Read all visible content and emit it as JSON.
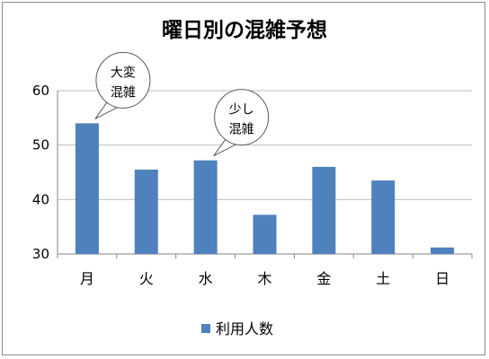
{
  "chart_data": {
    "type": "bar",
    "title": "曜日別の混雑予想",
    "categories": [
      "月",
      "火",
      "水",
      "木",
      "金",
      "土",
      "日"
    ],
    "series": [
      {
        "name": "利用人数",
        "values": [
          54,
          45.5,
          47.2,
          37.2,
          46,
          43.5,
          31.2
        ]
      }
    ],
    "ylim": [
      30,
      60
    ],
    "yticks": [
      30,
      40,
      50,
      60
    ],
    "grid": true,
    "legend": "bottom",
    "bar_color": "#4f81bd",
    "annotations": [
      {
        "category": "月",
        "lines": [
          "大変",
          "混雑"
        ]
      },
      {
        "category": "水",
        "lines": [
          "少し",
          "混雑"
        ]
      }
    ]
  }
}
